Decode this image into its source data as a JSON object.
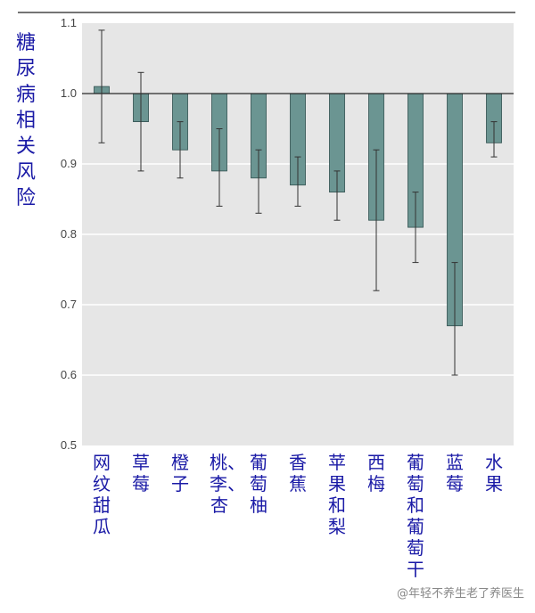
{
  "chart_data": {
    "type": "bar",
    "title": "",
    "ylabel": "糖尿病相关风险",
    "xlabel": "",
    "ylim": [
      0.5,
      1.1
    ],
    "baseline": 1.0,
    "yticks": [
      "0.5",
      "0.6",
      "0.7",
      "0.8",
      "0.9",
      "1.0",
      "1.1"
    ],
    "categories": [
      "网纹甜瓜",
      "草莓",
      "橙子",
      "桃、李、杏",
      "葡萄柚",
      "香蕉",
      "苹果和梨",
      "西梅",
      "葡萄和葡萄干",
      "蓝莓",
      "水果"
    ],
    "values": [
      1.01,
      0.96,
      0.92,
      0.89,
      0.88,
      0.87,
      0.86,
      0.82,
      0.81,
      0.67,
      0.93
    ],
    "err_low": [
      0.93,
      0.89,
      0.88,
      0.84,
      0.83,
      0.84,
      0.82,
      0.72,
      0.76,
      0.6,
      0.91
    ],
    "err_high": [
      1.09,
      1.03,
      0.96,
      0.95,
      0.92,
      0.91,
      0.89,
      0.92,
      0.86,
      0.76,
      0.96
    ],
    "grid": true,
    "colors": {
      "bar": "#6b9592",
      "bar_edge": "#2f4f4e",
      "plot_bg": "#e6e6e6",
      "grid": "#ffffff",
      "label": "#1a1aa6"
    }
  },
  "watermark": "@年轻不养生老了养医生"
}
